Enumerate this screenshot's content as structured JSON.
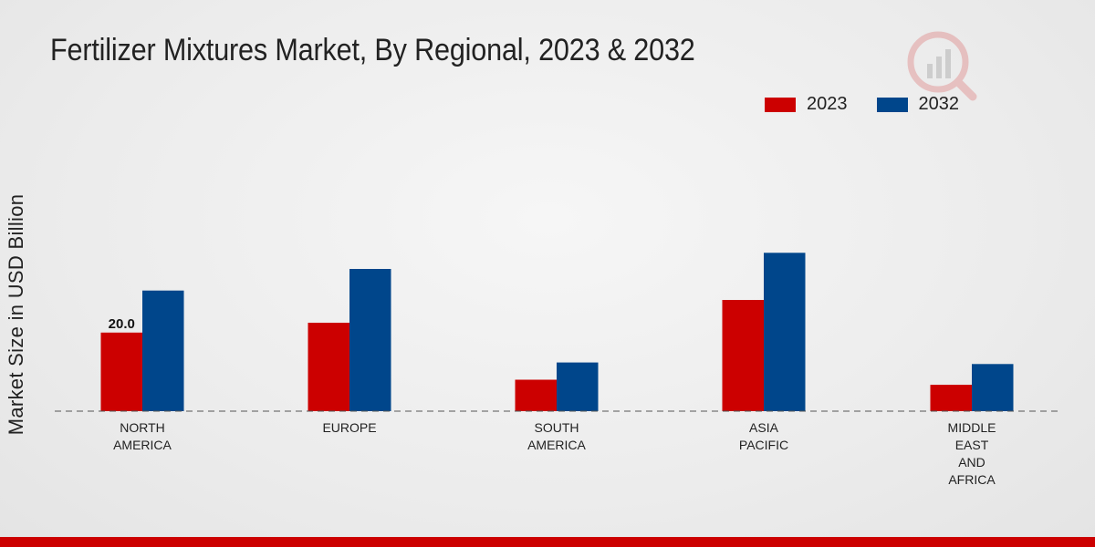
{
  "chart_data": {
    "type": "bar",
    "title": "Fertilizer Mixtures Market, By Regional, 2023 & 2032",
    "xlabel": "",
    "ylabel": "Market Size in USD Billion",
    "categories": [
      [
        "NORTH",
        "AMERICA"
      ],
      [
        "EUROPE"
      ],
      [
        "SOUTH",
        "AMERICA"
      ],
      [
        "ASIA",
        "PACIFIC"
      ],
      [
        "MIDDLE",
        "EAST",
        "AND",
        "AFRICA"
      ]
    ],
    "series": [
      {
        "name": "2023",
        "color": "#cc0000",
        "values": [
          20.0,
          22.5,
          8.0,
          28.3,
          6.7
        ]
      },
      {
        "name": "2032",
        "color": "#00468b",
        "values": [
          30.7,
          36.2,
          12.4,
          40.3,
          12.0
        ]
      }
    ],
    "ylim": [
      0,
      60
    ],
    "data_labels": [
      {
        "series": 0,
        "index": 0,
        "text": "20.0"
      }
    ],
    "legend_position": "top-right",
    "grid": false
  },
  "colors": {
    "bottom_bar": "#cc0000",
    "baseline": "#555555"
  }
}
